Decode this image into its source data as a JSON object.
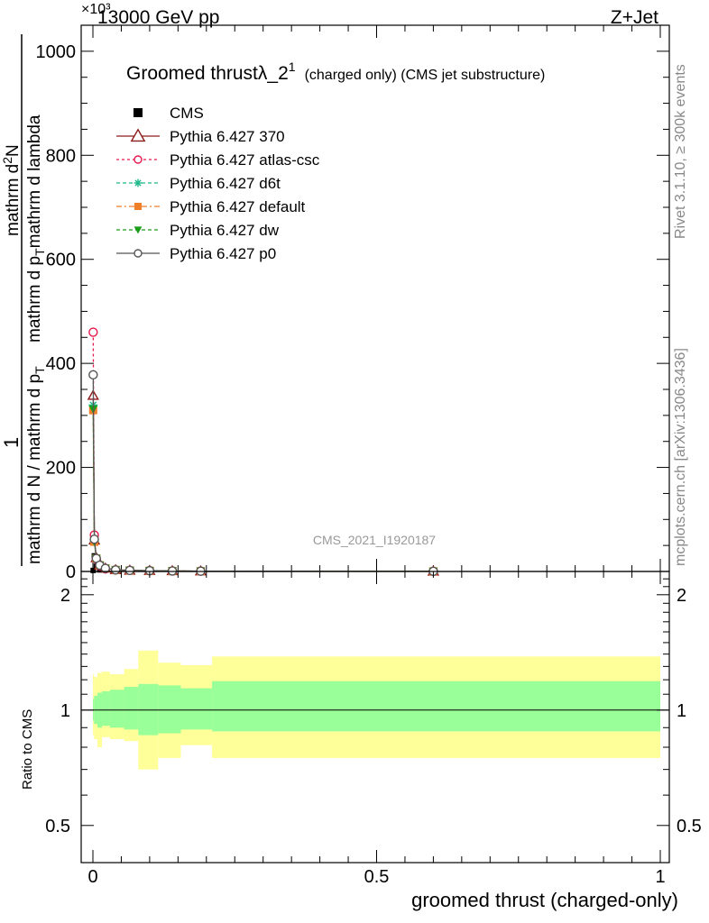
{
  "header": {
    "left": "13000 GeV pp",
    "right": "Z+Jet",
    "exponent": "×10³"
  },
  "side": {
    "rivet": "Rivet 3.1.10, ≥ 300k events",
    "url": "mcplots.cern.ch [arXiv:1306.3436]"
  },
  "analysis_id": "CMS_2021_I1920187",
  "ylabel": {
    "numerator": "1",
    "line1": "mathrm d N / mathrm d p",
    "sub1": "T",
    "line2": "mathrm d",
    "sup2": "2",
    "line2b": "N",
    "line3": "mathrm d p",
    "sub3": "T",
    "line3b": "mathrm d lambda",
    "line4": "mathrm d"
  },
  "ratio_ylabel": "Ratio to CMS",
  "xlabel": "groomed thrust (charged-only)",
  "chart_data": [
    {
      "type": "line",
      "title": "Groomed thrustλ_2¹ (charged only) (CMS jet substructure)",
      "title_main": "Groomed thrustλ_2",
      "title_sup": "1",
      "title_rest": "(charged only) (CMS jet substructure)",
      "xlim": [
        0,
        1
      ],
      "ylim": [
        0,
        1050
      ],
      "yscale_note": "×10³",
      "xticks": [
        0,
        0.5,
        1
      ],
      "yticks": [
        0,
        200,
        400,
        600,
        800,
        1000
      ],
      "legend_position": "top-left",
      "series": [
        {
          "name": "CMS",
          "color": "#000000",
          "marker": "square-filled",
          "dash": "none",
          "x": [
            0.0005,
            0.0025,
            0.006,
            0.012
          ],
          "y": [
            2,
            30,
            10,
            3
          ]
        },
        {
          "name": "Pythia 6.427 370",
          "color": "#8b1a1a",
          "marker": "triangle-open",
          "dash": "none",
          "x": [
            0.0005,
            0.0025,
            0.006,
            0.012,
            0.022,
            0.04,
            0.065,
            0.1,
            0.14,
            0.19,
            0.6
          ],
          "y": [
            338,
            60,
            26,
            12,
            6,
            3,
            2,
            1.5,
            1,
            0.6,
            0.3
          ]
        },
        {
          "name": "Pythia 6.427 atlas-csc",
          "color": "#e8174c",
          "marker": "circle-open",
          "dash": "3,3",
          "x": [
            0.0005,
            0.0025,
            0.006,
            0.012,
            0.022,
            0.04,
            0.065,
            0.1,
            0.14,
            0.19,
            0.6
          ],
          "y": [
            460,
            70,
            24,
            11,
            5,
            3,
            2,
            1.4,
            1,
            0.6,
            0.3
          ]
        },
        {
          "name": "Pythia 6.427 d6t",
          "color": "#1fb88a",
          "marker": "star",
          "dash": "4,3",
          "x": [
            0.0005,
            0.0025,
            0.006,
            0.012,
            0.022,
            0.04,
            0.065,
            0.1,
            0.14,
            0.19,
            0.6
          ],
          "y": [
            320,
            58,
            25,
            12,
            6,
            3,
            2,
            1.5,
            1,
            0.6,
            0.3
          ]
        },
        {
          "name": "Pythia 6.427 default",
          "color": "#f07f2a",
          "marker": "square-filled",
          "dash": "6,3,2,3",
          "x": [
            0.0005,
            0.0025,
            0.006,
            0.012,
            0.022,
            0.04,
            0.065,
            0.1,
            0.14,
            0.19,
            0.6
          ],
          "y": [
            310,
            57,
            25,
            12,
            6,
            3,
            2,
            1.5,
            1,
            0.6,
            0.3
          ]
        },
        {
          "name": "Pythia 6.427 dw",
          "color": "#1a9e1a",
          "marker": "triangle-down-filled",
          "dash": "4,3",
          "x": [
            0.0005,
            0.0025,
            0.006,
            0.012,
            0.022,
            0.04,
            0.065,
            0.1,
            0.14,
            0.19,
            0.6
          ],
          "y": [
            312,
            57,
            25,
            12,
            6,
            3,
            2,
            1.5,
            1,
            0.6,
            0.3
          ]
        },
        {
          "name": "Pythia 6.427 p0",
          "color": "#555555",
          "marker": "circle-open",
          "dash": "none",
          "x": [
            0.0005,
            0.0025,
            0.006,
            0.012,
            0.022,
            0.04,
            0.065,
            0.1,
            0.14,
            0.19,
            0.6
          ],
          "y": [
            378,
            62,
            25,
            12,
            6,
            3,
            2,
            1.5,
            1,
            0.6,
            0.3
          ]
        }
      ]
    },
    {
      "type": "area",
      "ylabel": "Ratio to CMS",
      "xlim": [
        0,
        1
      ],
      "ylim": [
        0.4,
        2.3
      ],
      "yscale": "log",
      "yticks": [
        0.5,
        1,
        2
      ],
      "xticks": [
        0,
        0.5,
        1
      ],
      "xticklabels": [
        "0",
        "0.5",
        "1"
      ],
      "reference_line": 1,
      "bins": [
        {
          "x0": 0.0,
          "x1": 0.002,
          "inner": [
            0.94,
            1.07
          ],
          "outer": [
            0.86,
            1.24
          ]
        },
        {
          "x0": 0.002,
          "x1": 0.008,
          "inner": [
            0.92,
            1.09
          ],
          "outer": [
            0.84,
            1.22
          ]
        },
        {
          "x0": 0.008,
          "x1": 0.016,
          "inner": [
            0.9,
            1.11
          ],
          "outer": [
            0.8,
            1.25
          ]
        },
        {
          "x0": 0.016,
          "x1": 0.03,
          "inner": [
            0.91,
            1.12
          ],
          "outer": [
            0.85,
            1.26
          ]
        },
        {
          "x0": 0.03,
          "x1": 0.055,
          "inner": [
            0.9,
            1.13
          ],
          "outer": [
            0.84,
            1.24
          ]
        },
        {
          "x0": 0.055,
          "x1": 0.08,
          "inner": [
            0.89,
            1.15
          ],
          "outer": [
            0.83,
            1.28
          ]
        },
        {
          "x0": 0.08,
          "x1": 0.115,
          "inner": [
            0.86,
            1.17
          ],
          "outer": [
            0.7,
            1.43
          ]
        },
        {
          "x0": 0.115,
          "x1": 0.155,
          "inner": [
            0.87,
            1.16
          ],
          "outer": [
            0.75,
            1.33
          ]
        },
        {
          "x0": 0.155,
          "x1": 0.21,
          "inner": [
            0.89,
            1.14
          ],
          "outer": [
            0.81,
            1.31
          ]
        },
        {
          "x0": 0.21,
          "x1": 1.0,
          "inner": [
            0.88,
            1.19
          ],
          "outer": [
            0.75,
            1.38
          ]
        }
      ]
    }
  ]
}
